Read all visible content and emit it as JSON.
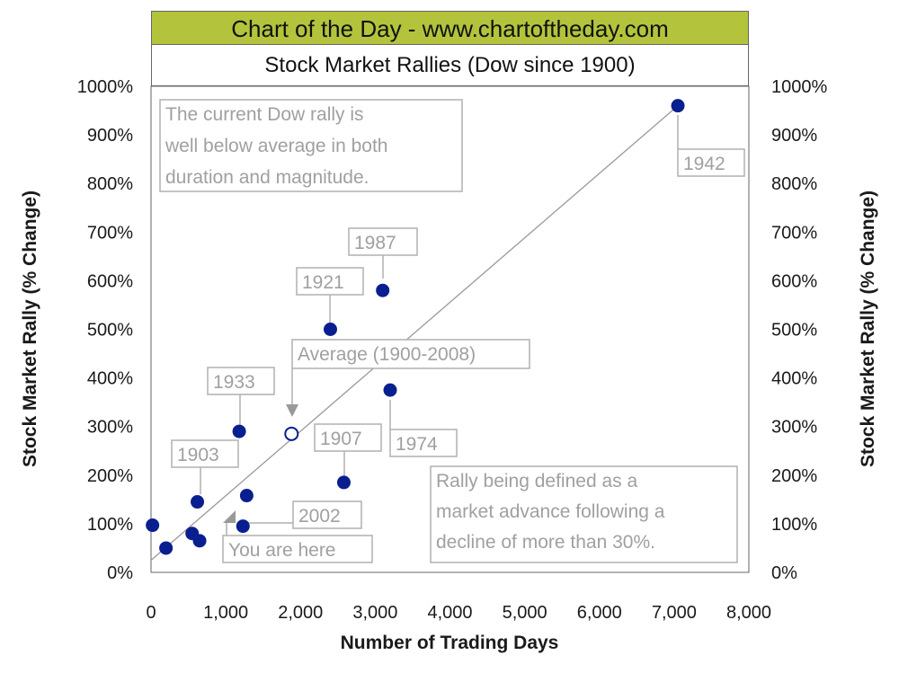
{
  "header": {
    "banner": "Chart of the Day - www.chartoftheday.com",
    "title": "Stock Market Rallies (Dow since 1900)"
  },
  "colors": {
    "banner_bg": "#b3c43c",
    "point": "#0a1f8f",
    "annotation_text": "#a0a0a0",
    "annotation_border": "#b0b0b0",
    "trend_line": "#9a9a9a"
  },
  "chart_data": {
    "type": "scatter",
    "xlabel": "Number of Trading Days",
    "ylabel": "Stock Market Rally (% Change)",
    "xlim": [
      0,
      8000
    ],
    "ylim": [
      0,
      1000
    ],
    "x_ticks": [
      "0",
      "1,000",
      "2,000",
      "3,000",
      "4,000",
      "5,000",
      "6,000",
      "7,000",
      "8,000"
    ],
    "y_ticks": [
      "0%",
      "100%",
      "200%",
      "300%",
      "400%",
      "500%",
      "600%",
      "700%",
      "800%",
      "900%",
      "1000%"
    ],
    "grid": false,
    "points": [
      {
        "x": 20,
        "y": 97
      },
      {
        "x": 200,
        "y": 50
      },
      {
        "x": 550,
        "y": 80
      },
      {
        "x": 620,
        "y": 145,
        "label": "1903"
      },
      {
        "x": 650,
        "y": 65
      },
      {
        "x": 1180,
        "y": 290,
        "label": "1933"
      },
      {
        "x": 1230,
        "y": 95,
        "label": "2002"
      },
      {
        "x": 1280,
        "y": 158
      },
      {
        "x": 2400,
        "y": 500,
        "label": "1921"
      },
      {
        "x": 2580,
        "y": 185,
        "label": "1907"
      },
      {
        "x": 3100,
        "y": 580,
        "label": "1987"
      },
      {
        "x": 3200,
        "y": 375,
        "label": "1974"
      },
      {
        "x": 7050,
        "y": 960,
        "label": "1942"
      }
    ],
    "average": {
      "x": 1880,
      "y": 285,
      "label": "Average (1900-2008)"
    },
    "trend_line": {
      "x1": 0,
      "y1": 25,
      "x2": 7050,
      "y2": 960
    },
    "annotations": {
      "current_note": [
        "The current Dow rally is",
        "well below average in both",
        "duration and magnitude."
      ],
      "you_are_here": "You are here",
      "definition": [
        "Rally being defined as a",
        "market advance following a",
        "decline of more than 30%."
      ]
    }
  }
}
